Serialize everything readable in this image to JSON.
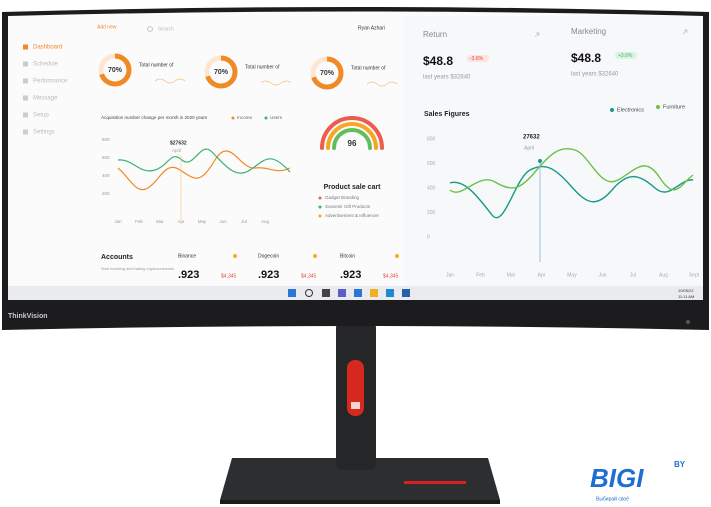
{
  "screen": {
    "sidebar": [
      "Dashboard",
      "Schedule",
      "Performance",
      "Message",
      "Setup",
      "Settings"
    ],
    "topbar": {
      "add": "Add new",
      "search": "Search",
      "user": "Ryan Azhari"
    },
    "donuts": [
      {
        "value": "70%",
        "label": "Total number of"
      },
      {
        "value": "70%",
        "label": "Total number of"
      },
      {
        "value": "70%",
        "label": "Total number of"
      }
    ],
    "acquisition": {
      "title": "Acquisition number change per month in 2020 years",
      "legend": [
        "Income",
        "Users"
      ],
      "peak": "$27632",
      "peak_month": "April",
      "yticks": [
        "800",
        "600",
        "400",
        "200"
      ],
      "months": [
        "Jan",
        "Feb",
        "Mar",
        "Apr",
        "May",
        "Jun",
        "Jul",
        "Aug"
      ]
    },
    "gauge": {
      "value": "96",
      "title": "Product sale cart",
      "items": [
        "Gadget Branding",
        "Souvenir Gift Products",
        "Advertisement & Influencer"
      ]
    },
    "accounts": {
      "title": "Accounts",
      "text": "Start investing and trading cryptocurrencies",
      "coins": [
        {
          "name": "Binance",
          "value": ".923",
          "change": "$4,345"
        },
        {
          "name": "Dogecoin",
          "value": ".923",
          "change": "$4,345"
        },
        {
          "name": "Bitcoin",
          "value": ".923",
          "change": "$4,345"
        }
      ]
    },
    "return": {
      "title": "Return",
      "value": "$48.8",
      "change": "-3.6%",
      "note": "last years $32640"
    },
    "marketing": {
      "title": "Marketing",
      "value": "$48.8",
      "change": "+3.6%",
      "note": "last years $32640"
    },
    "sales": {
      "title": "Sales Figures",
      "legend": [
        "Electronics",
        "Furniture"
      ],
      "peak": "27632",
      "peak_month": "April",
      "yticks": [
        "800",
        "600",
        "400",
        "200",
        "0"
      ],
      "months": [
        "Jan",
        "Feb",
        "Mar",
        "Apr",
        "May",
        "Jun",
        "Jul",
        "Aug",
        "Sept"
      ]
    },
    "taskbar": {
      "date": "10/05/22",
      "time": "11:11 AM"
    }
  },
  "bezel": {
    "brand": "ThinkVision"
  },
  "watermark": {
    "logo": "BIGI",
    "tld": "BY",
    "slogan": "Выбирай своё"
  }
}
